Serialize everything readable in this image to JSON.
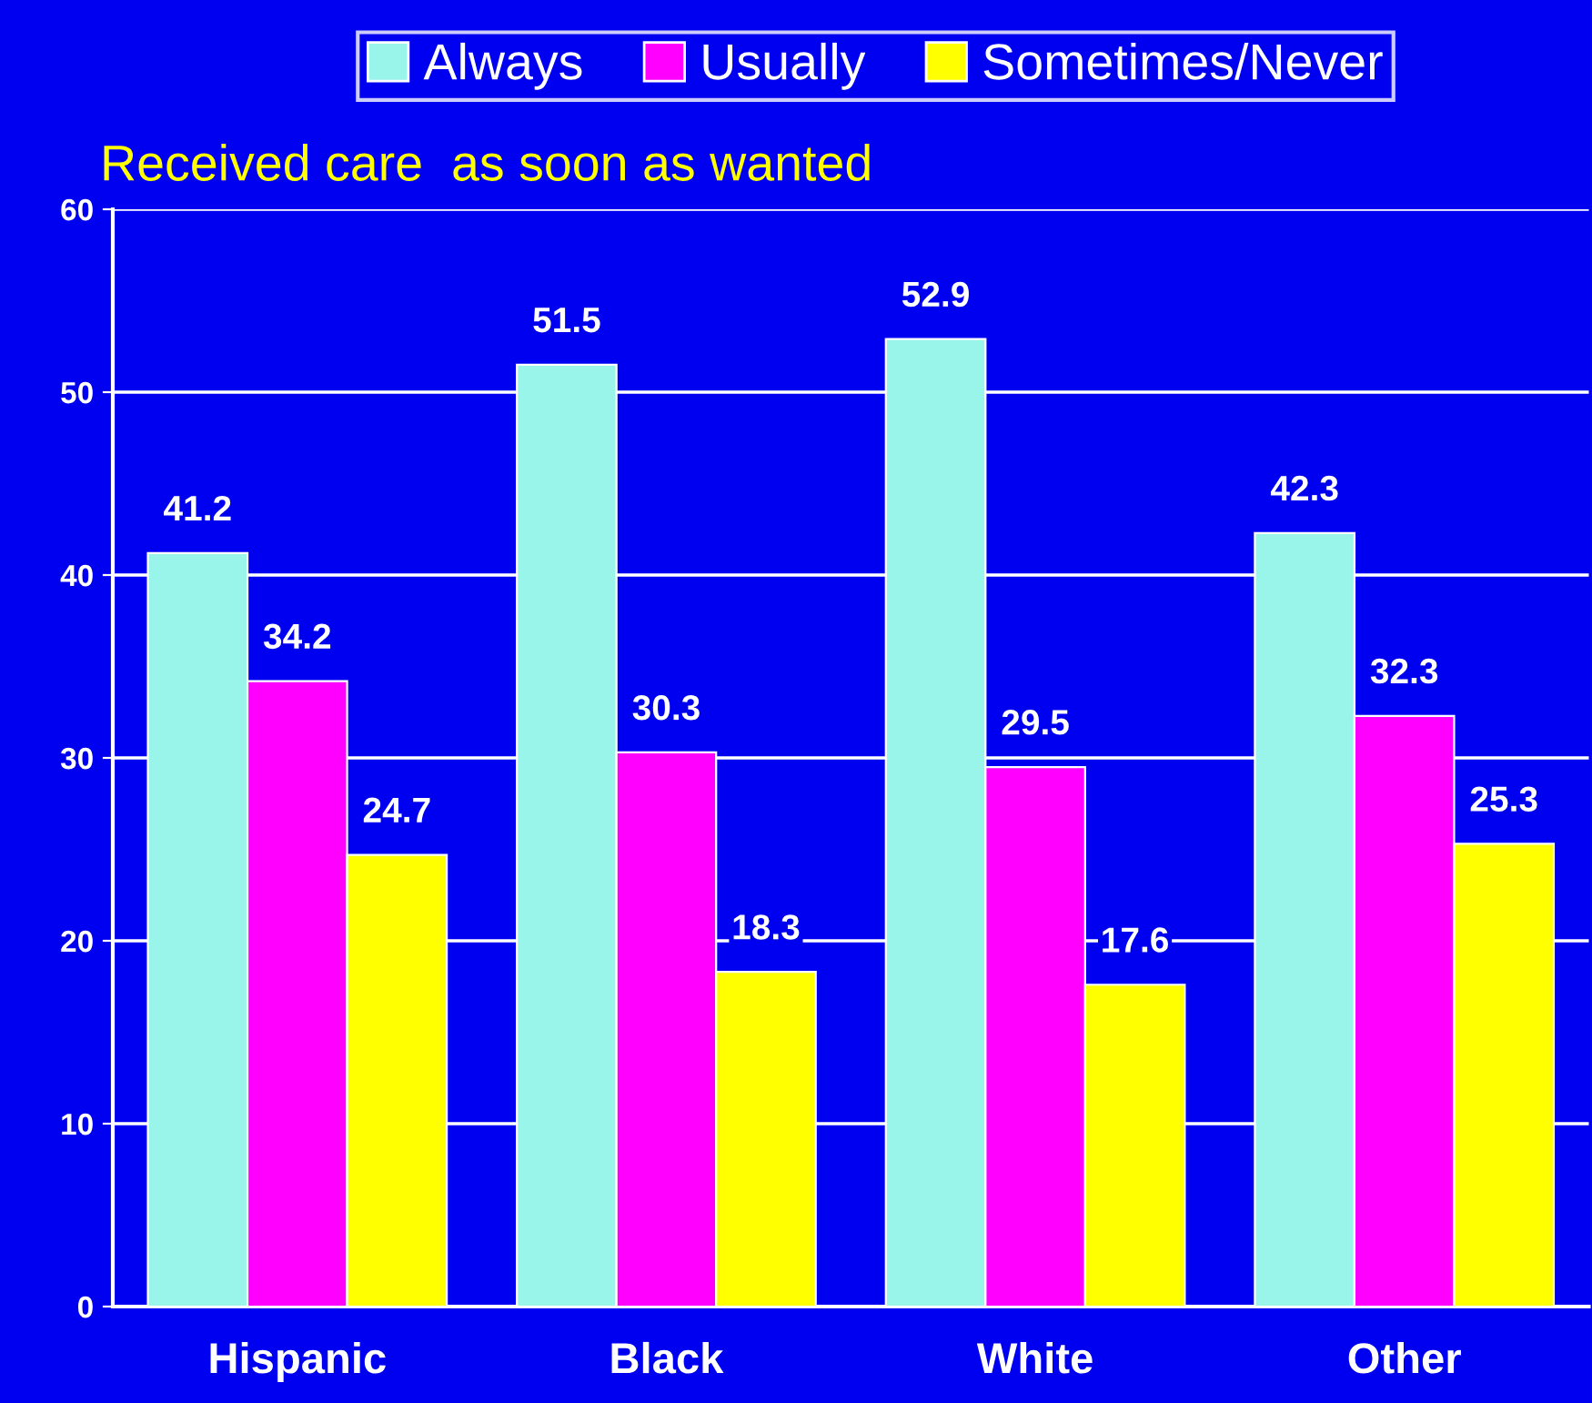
{
  "chart_data": {
    "type": "bar",
    "title": "Received care  as soon as wanted",
    "categories": [
      "Hispanic",
      "Black",
      "White",
      "Other"
    ],
    "series": [
      {
        "name": "Always",
        "color": "#99f5ea",
        "values": [
          41.2,
          51.5,
          52.9,
          42.3
        ]
      },
      {
        "name": "Usually",
        "color": "#ff00ff",
        "values": [
          34.2,
          30.3,
          29.5,
          32.3
        ]
      },
      {
        "name": "Sometimes/Never",
        "color": "#ffff00",
        "values": [
          24.7,
          18.3,
          17.6,
          25.3
        ]
      }
    ],
    "ylim": [
      0,
      60
    ],
    "yticks": [
      0,
      10,
      20,
      30,
      40,
      50,
      60
    ],
    "grid": "y",
    "legend": "top",
    "data_labels": true
  }
}
